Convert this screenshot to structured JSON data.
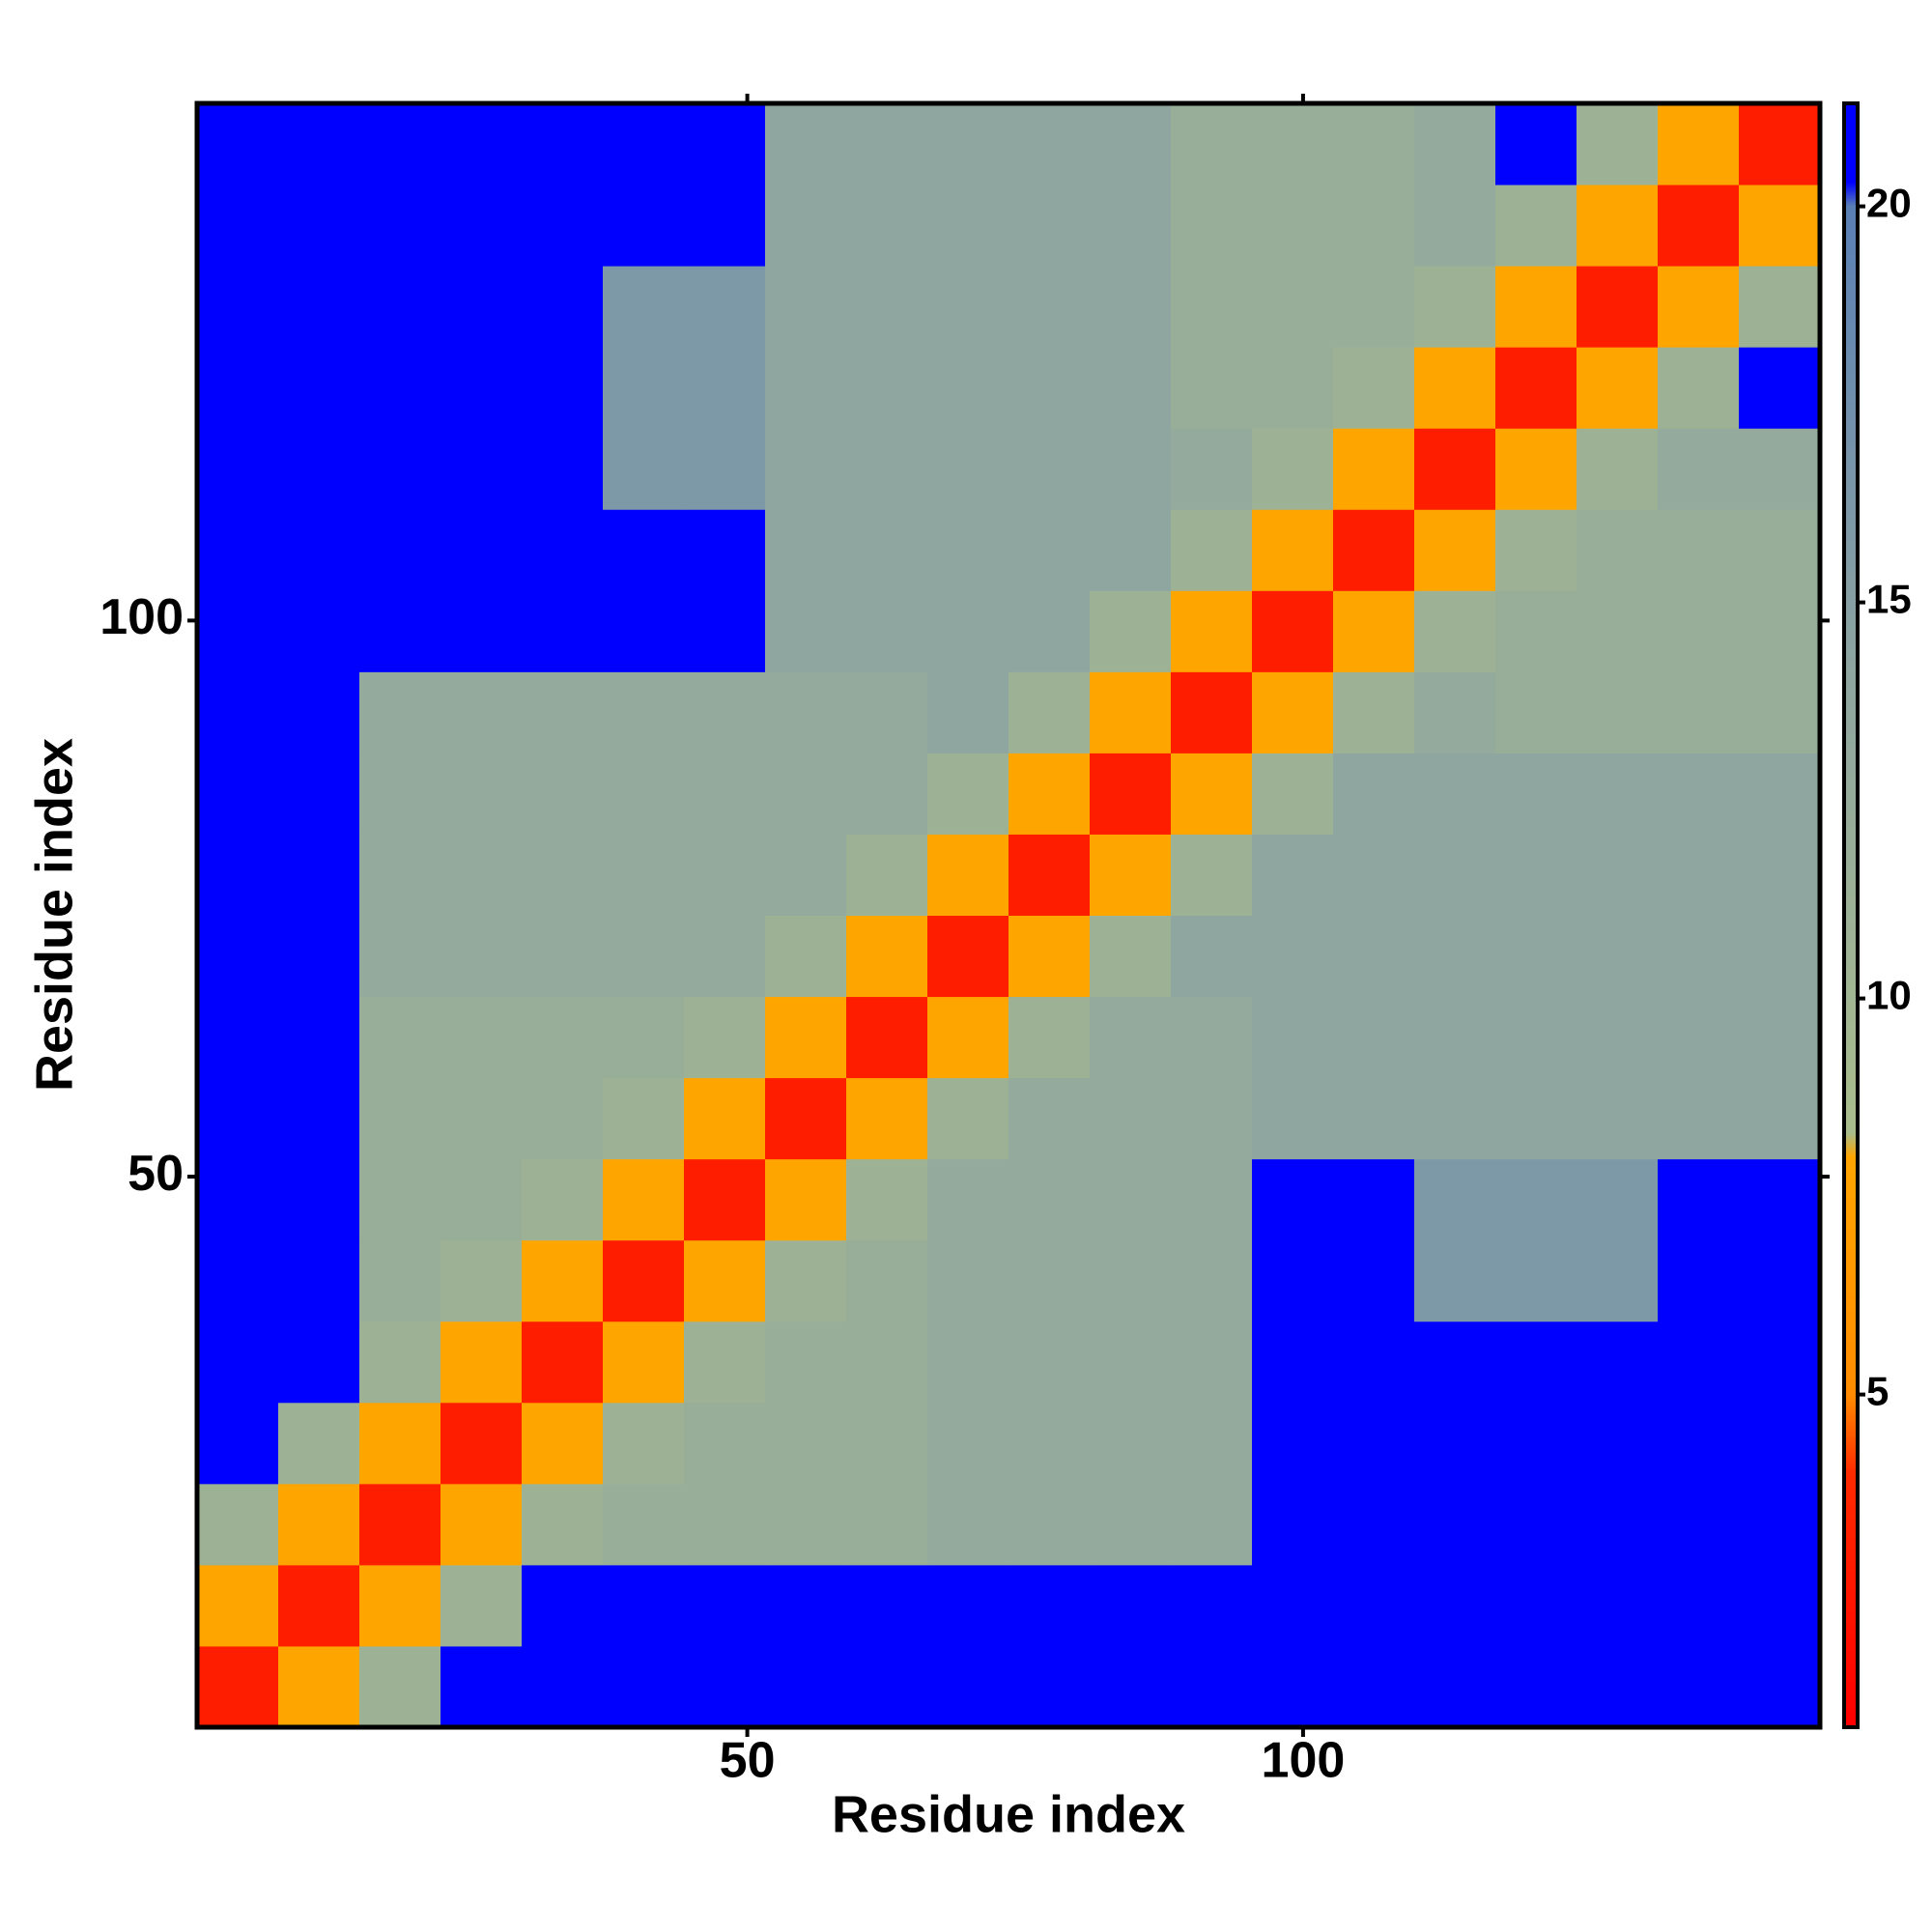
{
  "chart_data": {
    "type": "heatmap",
    "xlabel": "Residue index",
    "ylabel": "Residue index",
    "xbins": [
      0.5,
      7.8,
      15.1,
      22.4,
      29.7,
      37,
      44.3,
      51.6,
      58.9,
      66.2,
      73.5,
      80.8,
      88.1,
      95.4,
      102.7,
      110,
      117.3,
      124.6,
      131.9,
      139.2,
      146.5
    ],
    "ybins": [
      0.5,
      7.8,
      15.1,
      22.4,
      29.7,
      37,
      44.3,
      51.6,
      58.9,
      66.2,
      73.5,
      80.8,
      88.1,
      95.4,
      102.7,
      110,
      117.3,
      124.6,
      131.9,
      139.2,
      146.5
    ],
    "values": [
      [
        3,
        8,
        11,
        21,
        21,
        21,
        21,
        21,
        21,
        21,
        21,
        21,
        21,
        21,
        21,
        21,
        21,
        21,
        21,
        21
      ],
      [
        8,
        3,
        8,
        11,
        21,
        21,
        21,
        21,
        21,
        21,
        21,
        21,
        21,
        21,
        21,
        21,
        21,
        21,
        21,
        21
      ],
      [
        11,
        8,
        3,
        8,
        11,
        12,
        12,
        12,
        12,
        13,
        13,
        13,
        13,
        21,
        21,
        21,
        21,
        21,
        21,
        21
      ],
      [
        21,
        11,
        8,
        3,
        8,
        11,
        12,
        12,
        12,
        13,
        13,
        13,
        13,
        21,
        21,
        21,
        21,
        21,
        21,
        21
      ],
      [
        21,
        21,
        11,
        8,
        3,
        8,
        11,
        12,
        12,
        13,
        13,
        13,
        13,
        21,
        21,
        21,
        21,
        21,
        21,
        21
      ],
      [
        21,
        21,
        12,
        11,
        8,
        3,
        8,
        11,
        12,
        13,
        13,
        13,
        13,
        21,
        21,
        16,
        16,
        16,
        21,
        21
      ],
      [
        21,
        21,
        12,
        12,
        11,
        8,
        3,
        8,
        11,
        13,
        13,
        13,
        13,
        21,
        21,
        16,
        16,
        16,
        21,
        21
      ],
      [
        21,
        21,
        12,
        12,
        12,
        11,
        8,
        3,
        8,
        11,
        13,
        13,
        13,
        14,
        14,
        14,
        14,
        14,
        14,
        14
      ],
      [
        21,
        21,
        12,
        12,
        12,
        12,
        11,
        8,
        3,
        8,
        11,
        13,
        13,
        14,
        14,
        14,
        14,
        14,
        14,
        14
      ],
      [
        21,
        21,
        13,
        13,
        13,
        13,
        13,
        11,
        8,
        3,
        8,
        11,
        14,
        14,
        14,
        14,
        14,
        14,
        14,
        14
      ],
      [
        21,
        21,
        13,
        13,
        13,
        13,
        13,
        13,
        11,
        8,
        3,
        8,
        11,
        14,
        14,
        14,
        14,
        14,
        14,
        14
      ],
      [
        21,
        21,
        13,
        13,
        13,
        13,
        13,
        13,
        13,
        11,
        8,
        3,
        8,
        11,
        14,
        14,
        14,
        14,
        14,
        14
      ],
      [
        21,
        21,
        13,
        13,
        13,
        13,
        13,
        13,
        13,
        14,
        11,
        8,
        3,
        8,
        11,
        13,
        12,
        12,
        12,
        12
      ],
      [
        21,
        21,
        21,
        21,
        21,
        21,
        21,
        14,
        14,
        14,
        14,
        11,
        8,
        3,
        8,
        11,
        12,
        12,
        12,
        12
      ],
      [
        21,
        21,
        21,
        21,
        21,
        21,
        21,
        14,
        14,
        14,
        14,
        14,
        11,
        8,
        3,
        8,
        11,
        12,
        12,
        12
      ],
      [
        21,
        21,
        21,
        21,
        21,
        16,
        16,
        14,
        14,
        14,
        14,
        14,
        13,
        11,
        8,
        3,
        8,
        11,
        13,
        13
      ],
      [
        21,
        21,
        21,
        21,
        21,
        16,
        16,
        14,
        14,
        14,
        14,
        14,
        12,
        12,
        11,
        8,
        3,
        8,
        11,
        21
      ],
      [
        21,
        21,
        21,
        21,
        21,
        16,
        16,
        14,
        14,
        14,
        14,
        14,
        12,
        12,
        12,
        11,
        8,
        3,
        8,
        11
      ],
      [
        21,
        21,
        21,
        21,
        21,
        21,
        21,
        14,
        14,
        14,
        14,
        14,
        12,
        12,
        12,
        13,
        11,
        8,
        3,
        8
      ],
      [
        21,
        21,
        21,
        21,
        21,
        21,
        21,
        14,
        14,
        14,
        14,
        14,
        12,
        12,
        12,
        13,
        21,
        11,
        8,
        3
      ]
    ],
    "xlim": [
      0.5,
      146.5
    ],
    "ylim": [
      0.5,
      146.5
    ],
    "xticks": [
      50,
      100
    ],
    "yticks": [
      50,
      100
    ],
    "colorbar": {
      "lim": [
        0.8,
        21.3
      ],
      "ticks": [
        5,
        10,
        15,
        20
      ],
      "stops": [
        {
          "value": 0.8,
          "color": "#ff0000"
        },
        {
          "value": 4,
          "color": "#ff2a00"
        },
        {
          "value": 5,
          "color": "#ff8c00"
        },
        {
          "value": 8,
          "color": "#ffa500"
        },
        {
          "value": 8.3,
          "color": "#a9bd8c"
        },
        {
          "value": 14,
          "color": "#8fa6a0"
        },
        {
          "value": 20,
          "color": "#5a7fb5"
        },
        {
          "value": 20.3,
          "color": "#0000ff"
        },
        {
          "value": 21.3,
          "color": "#0000ff"
        }
      ]
    }
  }
}
